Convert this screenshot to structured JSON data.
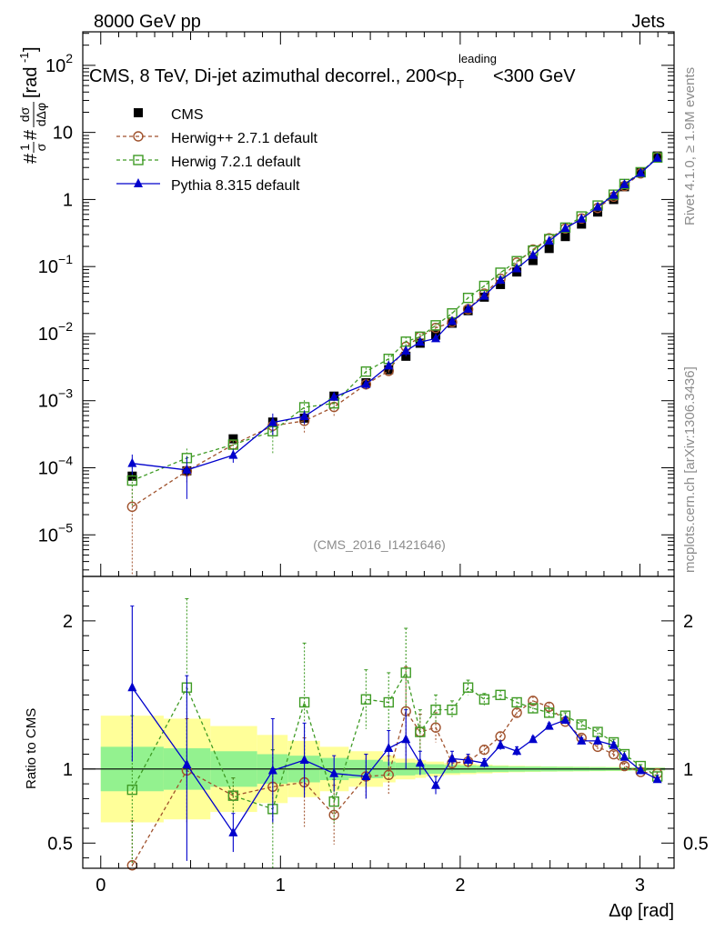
{
  "header": {
    "left": "8000 GeV pp",
    "right": "Jets"
  },
  "side": {
    "rivet": "Rivet 4.1.0, ≥ 1.9M events",
    "mcplots": "mcplots.cern.ch [arXiv:1306.3436]"
  },
  "chart_data": {
    "type": "scatter",
    "title": "CMS, 8 TeV, Di-jet azimuthal decorrel., 200<p_T^leading<300 GeV",
    "title_parts": {
      "main": "CMS, 8 TeV, Di-jet azimuthal decorrel., 200<p",
      "sub": "T",
      "sup": "leading",
      "tail": "<300 GeV"
    },
    "analysis_label": "(CMS_2016_I1421646)",
    "xlabel": "Δφ [rad]",
    "ylabel_upper": "#1/σ # dσ / dΔφ [rad⁻¹]",
    "ylabel_upper_parts": {
      "lead": "#",
      "frac1_num": "1",
      "frac1_den": "σ",
      "mid": "#",
      "frac2_num": "dσ",
      "frac2_den": "dΔφ",
      "unit": "[rad",
      "unit_sup": "-1",
      "unit_close": "]"
    },
    "ylabel_lower": "Ratio to CMS",
    "xlim": [
      -0.1,
      3.19
    ],
    "ylim_upper_log10": [
      -5.62,
      2.5
    ],
    "ylim_lower": [
      0.33,
      2.3
    ],
    "x_ticks": [
      {
        "v": 0,
        "label": "0"
      },
      {
        "v": 1,
        "label": "1"
      },
      {
        "v": 2,
        "label": "2"
      },
      {
        "v": 3,
        "label": "3"
      }
    ],
    "y_ticks_upper": [
      {
        "e": -5,
        "label": "10",
        "sup": "−5"
      },
      {
        "e": -4,
        "label": "10",
        "sup": "−4"
      },
      {
        "e": -3,
        "label": "10",
        "sup": "−3"
      },
      {
        "e": -2,
        "label": "10",
        "sup": "−2"
      },
      {
        "e": -1,
        "label": "10",
        "sup": "−1"
      },
      {
        "e": 0,
        "label": "1",
        "sup": ""
      },
      {
        "e": 1,
        "label": "10",
        "sup": ""
      },
      {
        "e": 2,
        "label": "10",
        "sup": "2"
      }
    ],
    "y_ticks_lower": [
      {
        "v": 0.5,
        "label": "0.5"
      },
      {
        "v": 1,
        "label": "1"
      },
      {
        "v": 2,
        "label": "2"
      }
    ],
    "x": [
      0.175,
      0.479,
      0.737,
      0.957,
      1.133,
      1.298,
      1.476,
      1.602,
      1.698,
      1.777,
      1.864,
      1.955,
      2.044,
      2.134,
      2.224,
      2.315,
      2.405,
      2.495,
      2.585,
      2.675,
      2.765,
      2.854,
      2.914,
      3.004,
      3.097
    ],
    "bin_edges": [
      0,
      0.35,
      0.61,
      0.87,
      1.04,
      1.22,
      1.38,
      1.57,
      1.64,
      1.75,
      1.81,
      1.91,
      2.0,
      2.09,
      2.18,
      2.27,
      2.36,
      2.45,
      2.54,
      2.63,
      2.72,
      2.81,
      2.9,
      2.95,
      3.05,
      3.14
    ],
    "legend": [
      {
        "name": "CMS",
        "color": "#000000",
        "marker": "square-filled",
        "line": "none"
      },
      {
        "name": "Herwig++ 2.7.1 default",
        "color": "#a0522d",
        "marker": "circle-open",
        "line": "dashed"
      },
      {
        "name": "Herwig 7.2.1 default",
        "color": "#3f9b25",
        "marker": "square-open",
        "line": "dashed"
      },
      {
        "name": "Pythia 8.315 default",
        "color": "#0000cc",
        "marker": "triangle-filled",
        "line": "solid"
      }
    ],
    "cms_values": [
      7.5e-05,
      9e-05,
      0.00027,
      0.00048,
      0.00055,
      0.00117,
      0.00185,
      0.0029,
      0.0046,
      0.0072,
      0.0095,
      0.0143,
      0.022,
      0.035,
      0.054,
      0.083,
      0.123,
      0.186,
      0.28,
      0.43,
      0.65,
      1.0,
      1.55,
      2.5,
      4.45
    ],
    "band_inner": [
      0.15,
      0.14,
      0.12,
      0.1,
      0.09,
      0.075,
      0.062,
      0.05,
      0.043,
      0.037,
      0.032,
      0.028,
      0.025,
      0.022,
      0.02,
      0.018,
      0.017,
      0.016,
      0.015,
      0.014,
      0.013,
      0.012,
      0.011,
      0.01,
      0.009
    ],
    "band_outer": [
      0.36,
      0.34,
      0.29,
      0.23,
      0.19,
      0.15,
      0.12,
      0.09,
      0.07,
      0.06,
      0.05,
      0.04,
      0.035,
      0.03,
      0.025,
      0.022,
      0.02,
      0.018,
      0.017,
      0.016,
      0.015,
      0.014,
      0.012,
      0.011,
      0.01
    ],
    "series": [
      {
        "name": "Herwig++ 2.7.1 default",
        "color": "#a0522d",
        "marker": "circle-open",
        "dashed": true,
        "ratio": [
          0.35,
          0.99,
          0.82,
          0.88,
          0.91,
          0.69,
          0.95,
          0.96,
          1.39,
          1.25,
          1.28,
          1.04,
          1.05,
          1.13,
          1.22,
          1.38,
          1.46,
          1.42,
          1.32,
          1.21,
          1.15,
          1.1,
          1.02,
          0.98,
          0.97
        ],
        "err_lo": [
          0.35,
          0.35,
          0.12,
          0.25,
          0.3,
          0.2,
          0.15,
          0.13,
          0.3,
          0.12,
          0.1,
          0.05,
          0.04,
          0.03,
          0.03,
          0.03,
          0.03,
          0.03,
          0.02,
          0.02,
          0.02,
          0.02,
          0.02,
          0.01,
          0.01
        ],
        "err_hi": [
          0.3,
          0.35,
          0.12,
          0.25,
          0.3,
          0.2,
          0.15,
          0.13,
          0.3,
          0.12,
          0.1,
          0.05,
          0.04,
          0.03,
          0.03,
          0.03,
          0.03,
          0.03,
          0.02,
          0.02,
          0.02,
          0.02,
          0.02,
          0.01,
          0.01
        ]
      },
      {
        "name": "Herwig 7.2.1 default",
        "color": "#3f9b25",
        "marker": "square-open",
        "dashed": true,
        "ratio": [
          0.86,
          1.55,
          0.82,
          0.73,
          1.45,
          0.78,
          1.47,
          1.45,
          1.65,
          1.25,
          1.4,
          1.4,
          1.55,
          1.47,
          1.5,
          1.45,
          1.41,
          1.38,
          1.36,
          1.3,
          1.25,
          1.18,
          1.1,
          1.02,
          0.95
        ],
        "err_lo": [
          0.5,
          0.6,
          0.12,
          0.4,
          0.4,
          0.15,
          0.2,
          0.2,
          0.3,
          0.15,
          0.1,
          0.06,
          0.05,
          0.04,
          0.03,
          0.03,
          0.03,
          0.03,
          0.02,
          0.02,
          0.02,
          0.02,
          0.02,
          0.01,
          0.01
        ],
        "err_hi": [
          0.5,
          0.6,
          0.12,
          0.4,
          0.4,
          0.15,
          0.2,
          0.2,
          0.3,
          0.15,
          0.1,
          0.06,
          0.05,
          0.04,
          0.03,
          0.03,
          0.03,
          0.03,
          0.02,
          0.02,
          0.02,
          0.02,
          0.02,
          0.01,
          0.01
        ]
      },
      {
        "name": "Pythia 8.315 default",
        "color": "#0000cc",
        "marker": "triangle-filled",
        "dashed": false,
        "ratio": [
          1.55,
          1.03,
          0.57,
          0.99,
          1.06,
          0.97,
          0.95,
          1.14,
          1.2,
          1.04,
          0.89,
          1.07,
          1.06,
          1.04,
          1.16,
          1.12,
          1.2,
          1.29,
          1.33,
          1.19,
          1.19,
          1.16,
          1.08,
          0.99,
          0.93
        ],
        "err_lo": [
          0.5,
          0.65,
          0.13,
          0.35,
          0.25,
          0.12,
          0.15,
          0.12,
          0.2,
          0.08,
          0.06,
          0.05,
          0.04,
          0.03,
          0.03,
          0.03,
          0.02,
          0.02,
          0.02,
          0.02,
          0.02,
          0.02,
          0.01,
          0.01,
          0.01
        ],
        "err_hi": [
          0.55,
          0.6,
          0.13,
          0.35,
          0.25,
          0.12,
          0.15,
          0.12,
          0.2,
          0.08,
          0.06,
          0.05,
          0.04,
          0.03,
          0.03,
          0.03,
          0.02,
          0.02,
          0.02,
          0.02,
          0.02,
          0.02,
          0.01,
          0.01,
          0.01
        ]
      }
    ]
  }
}
